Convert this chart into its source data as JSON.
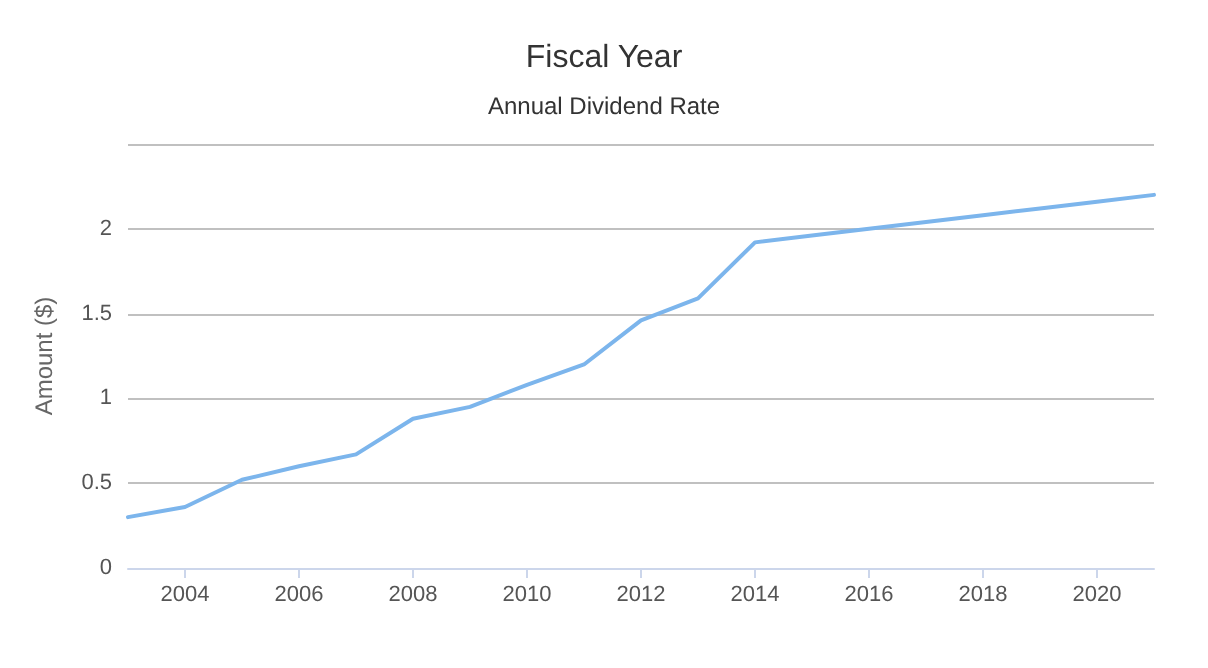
{
  "chart_data": {
    "type": "line",
    "title": "Fiscal Year",
    "subtitle": "Annual Dividend Rate",
    "ylabel": "Amount ($)",
    "x": [
      2003,
      2004,
      2005,
      2006,
      2007,
      2008,
      2009,
      2010,
      2011,
      2012,
      2013,
      2014,
      2015,
      2016,
      2017,
      2018,
      2019,
      2020,
      2021
    ],
    "series": [
      {
        "color": "#7cb5ec",
        "values": [
          0.3,
          0.36,
          0.52,
          0.6,
          0.67,
          0.88,
          0.95,
          1.08,
          1.2,
          1.46,
          1.59,
          1.92,
          1.96,
          2.0,
          2.04,
          2.08,
          2.12,
          2.16,
          2.2
        ]
      }
    ],
    "xlim": [
      2003,
      2021
    ],
    "xticks": [
      2004,
      2006,
      2008,
      2010,
      2012,
      2014,
      2016,
      2018,
      2020
    ],
    "ylim": [
      0,
      2.5
    ],
    "yticks": [
      0,
      0.5,
      1,
      1.5,
      2,
      {
        "value": 2.5,
        "label": null
      }
    ],
    "grid": "y",
    "marker": "none",
    "line_style": "solid"
  }
}
